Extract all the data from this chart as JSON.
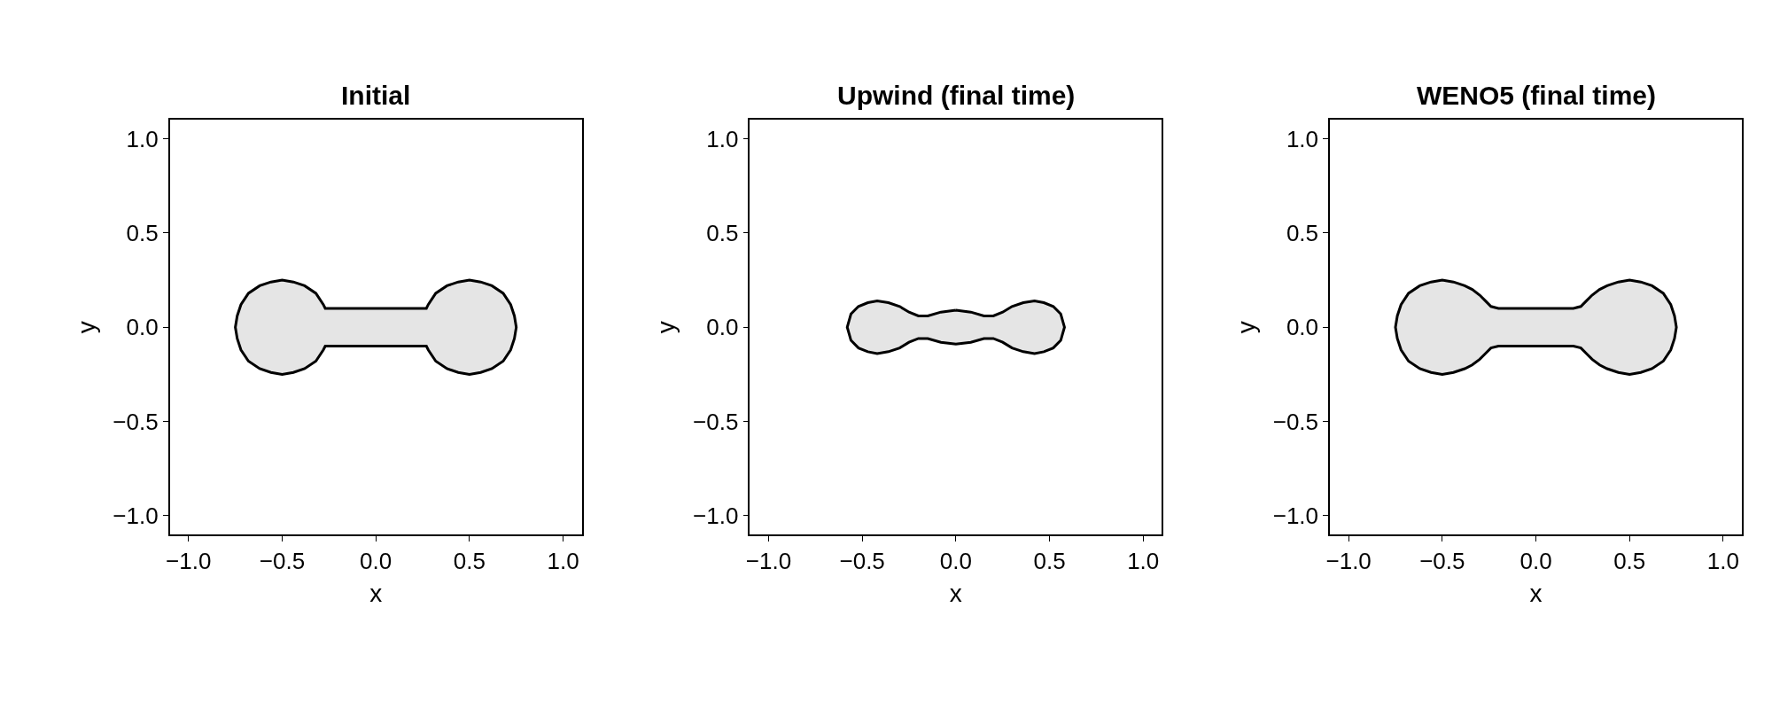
{
  "chart_data": [
    {
      "type": "area",
      "title": "Initial",
      "xlabel": "x",
      "ylabel": "y",
      "xlim": [
        -1.1,
        1.1
      ],
      "ylim": [
        -1.1,
        1.1
      ],
      "xticks": [
        {
          "value": -1,
          "label": "−1.0"
        },
        {
          "value": -0.5,
          "label": "−0.5"
        },
        {
          "value": 0,
          "label": "0.0"
        },
        {
          "value": 0.5,
          "label": "0.5"
        },
        {
          "value": 1,
          "label": "1.0"
        }
      ],
      "yticks": [
        {
          "value": -1,
          "label": "−1.0"
        },
        {
          "value": -0.5,
          "label": "−0.5"
        },
        {
          "value": 0,
          "label": "0.0"
        },
        {
          "value": 0.5,
          "label": "0.5"
        },
        {
          "value": 1,
          "label": "1.0"
        }
      ],
      "series": [
        {
          "color": "#000000",
          "x": [
            0,
            0.27,
            0.28,
            0.32,
            0.38,
            0.44,
            0.5,
            0.56,
            0.62,
            0.68,
            0.72,
            0.74,
            0.75,
            0.74,
            0.72,
            0.68,
            0.62,
            0.56,
            0.5,
            0.44,
            0.38,
            0.32,
            0.28,
            0.27,
            0,
            -0.27,
            -0.28,
            -0.32,
            -0.38,
            -0.44,
            -0.5,
            -0.56,
            -0.62,
            -0.68,
            -0.72,
            -0.74,
            -0.75,
            -0.74,
            -0.72,
            -0.68,
            -0.62,
            -0.56,
            -0.5,
            -0.44,
            -0.38,
            -0.32,
            -0.28,
            -0.27,
            0
          ],
          "values": [
            0.1,
            0.1,
            0.12,
            0.18,
            0.22,
            0.24,
            0.25,
            0.24,
            0.22,
            0.18,
            0.12,
            0.06,
            0,
            -0.06,
            -0.12,
            -0.18,
            -0.22,
            -0.24,
            -0.25,
            -0.24,
            -0.22,
            -0.18,
            -0.12,
            -0.1,
            -0.1,
            -0.1,
            -0.12,
            -0.18,
            -0.22,
            -0.24,
            -0.25,
            -0.24,
            -0.22,
            -0.18,
            -0.12,
            -0.06,
            0,
            0.06,
            0.12,
            0.18,
            0.22,
            0.24,
            0.25,
            0.24,
            0.22,
            0.18,
            0.12,
            0.1,
            0.1
          ]
        }
      ]
    },
    {
      "type": "area",
      "title": "Upwind (final time)",
      "xlabel": "x",
      "ylabel": "y",
      "xlim": [
        -1.1,
        1.1
      ],
      "ylim": [
        -1.1,
        1.1
      ],
      "xticks": [
        {
          "value": -1,
          "label": "−1.0"
        },
        {
          "value": -0.5,
          "label": "−0.5"
        },
        {
          "value": 0,
          "label": "0.0"
        },
        {
          "value": 0.5,
          "label": "0.5"
        },
        {
          "value": 1,
          "label": "1.0"
        }
      ],
      "yticks": [
        {
          "value": -1,
          "label": "−1.0"
        },
        {
          "value": -0.5,
          "label": "−0.5"
        },
        {
          "value": 0,
          "label": "0.0"
        },
        {
          "value": 0.5,
          "label": "0.5"
        },
        {
          "value": 1,
          "label": "1.0"
        }
      ],
      "series": [
        {
          "color": "#000000",
          "x": [
            0,
            0.08,
            0.15,
            0.2,
            0.25,
            0.3,
            0.36,
            0.42,
            0.47,
            0.52,
            0.56,
            0.58,
            0.56,
            0.52,
            0.47,
            0.42,
            0.36,
            0.3,
            0.25,
            0.2,
            0.15,
            0.08,
            0,
            -0.08,
            -0.15,
            -0.2,
            -0.25,
            -0.3,
            -0.36,
            -0.42,
            -0.47,
            -0.52,
            -0.56,
            -0.58,
            -0.56,
            -0.52,
            -0.47,
            -0.42,
            -0.36,
            -0.3,
            -0.25,
            -0.2,
            -0.15,
            -0.08,
            0
          ],
          "values": [
            0.09,
            0.08,
            0.06,
            0.06,
            0.08,
            0.11,
            0.13,
            0.14,
            0.13,
            0.11,
            0.07,
            0,
            -0.07,
            -0.11,
            -0.13,
            -0.14,
            -0.13,
            -0.11,
            -0.08,
            -0.06,
            -0.06,
            -0.08,
            -0.09,
            -0.08,
            -0.06,
            -0.06,
            -0.08,
            -0.11,
            -0.13,
            -0.14,
            -0.13,
            -0.11,
            -0.07,
            0,
            0.07,
            0.11,
            0.13,
            0.14,
            0.13,
            0.11,
            0.08,
            0.06,
            0.06,
            0.08,
            0.09
          ]
        }
      ]
    },
    {
      "type": "area",
      "title": "WENO5 (final time)",
      "xlabel": "x",
      "ylabel": "y",
      "xlim": [
        -1.1,
        1.1
      ],
      "ylim": [
        -1.1,
        1.1
      ],
      "xticks": [
        {
          "value": -1,
          "label": "−1.0"
        },
        {
          "value": -0.5,
          "label": "−0.5"
        },
        {
          "value": 0,
          "label": "0.0"
        },
        {
          "value": 0.5,
          "label": "0.5"
        },
        {
          "value": 1,
          "label": "1.0"
        }
      ],
      "yticks": [
        {
          "value": -1,
          "label": "−1.0"
        },
        {
          "value": -0.5,
          "label": "−0.5"
        },
        {
          "value": 0,
          "label": "0.0"
        },
        {
          "value": 0.5,
          "label": "0.5"
        },
        {
          "value": 1,
          "label": "1.0"
        }
      ],
      "series": [
        {
          "color": "#000000",
          "x": [
            0,
            0.2,
            0.24,
            0.27,
            0.3,
            0.34,
            0.38,
            0.44,
            0.5,
            0.56,
            0.62,
            0.68,
            0.72,
            0.74,
            0.75,
            0.74,
            0.72,
            0.68,
            0.62,
            0.56,
            0.5,
            0.44,
            0.38,
            0.34,
            0.3,
            0.27,
            0.24,
            0.2,
            0,
            -0.2,
            -0.24,
            -0.27,
            -0.3,
            -0.34,
            -0.38,
            -0.44,
            -0.5,
            -0.56,
            -0.62,
            -0.68,
            -0.72,
            -0.74,
            -0.75,
            -0.74,
            -0.72,
            -0.68,
            -0.62,
            -0.56,
            -0.5,
            -0.44,
            -0.38,
            -0.34,
            -0.3,
            -0.27,
            -0.24,
            -0.2,
            0
          ],
          "values": [
            0.1,
            0.1,
            0.11,
            0.14,
            0.17,
            0.2,
            0.22,
            0.24,
            0.25,
            0.24,
            0.22,
            0.18,
            0.12,
            0.06,
            0,
            -0.06,
            -0.12,
            -0.18,
            -0.22,
            -0.24,
            -0.25,
            -0.24,
            -0.22,
            -0.2,
            -0.17,
            -0.14,
            -0.11,
            -0.1,
            -0.1,
            -0.1,
            -0.11,
            -0.14,
            -0.17,
            -0.2,
            -0.22,
            -0.24,
            -0.25,
            -0.24,
            -0.22,
            -0.18,
            -0.12,
            -0.06,
            0,
            0.06,
            0.12,
            0.18,
            0.22,
            0.24,
            0.25,
            0.24,
            0.22,
            0.2,
            0.17,
            0.14,
            0.11,
            0.1,
            0.1
          ]
        }
      ]
    }
  ]
}
